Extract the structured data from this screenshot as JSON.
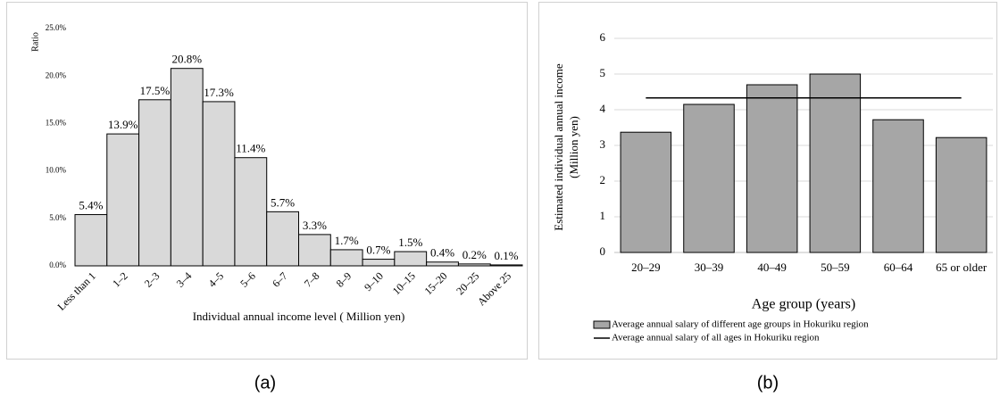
{
  "chart_data": [
    {
      "type": "bar",
      "label": "(a)",
      "ylabel": "Ratio",
      "xlabel": "Individual annual income level ( Million yen)",
      "categories": [
        "Less than 1",
        "1–2",
        "2–3",
        "3–4",
        "4–5",
        "5–6",
        "6–7",
        "7–8",
        "8–9",
        "9–10",
        "10–15",
        "15–20",
        "20–25",
        "Above 25"
      ],
      "values": [
        5.4,
        13.9,
        17.5,
        20.8,
        17.3,
        11.4,
        5.7,
        3.3,
        1.7,
        0.7,
        1.5,
        0.4,
        0.2,
        0.1
      ],
      "value_labels": [
        "5.4%",
        "13.9%",
        "17.5%",
        "20.8%",
        "17.3%",
        "11.4%",
        "5.7%",
        "3.3%",
        "1.7%",
        "0.7%",
        "1.5%",
        "0.4%",
        "0.2%",
        "0.1%"
      ],
      "color": "#d9d9d9",
      "ylim": [
        0,
        25
      ],
      "yticks": [
        {
          "value": 0,
          "label": "0.0%"
        },
        {
          "value": 5,
          "label": "5.0%"
        },
        {
          "value": 10,
          "label": "10.0%"
        },
        {
          "value": 15,
          "label": "15.0%"
        },
        {
          "value": 20,
          "label": "20.0%"
        },
        {
          "value": 25,
          "label": "25.0%"
        }
      ],
      "grid": false,
      "xtick_rotation": -45
    },
    {
      "type": "bar",
      "label": "(b)",
      "ylabel": [
        "Estimated individual annual income",
        "(Million yen)"
      ],
      "xlabel": "Age group (years)",
      "categories": [
        "20–29",
        "30–39",
        "40–49",
        "50–59",
        "60–64",
        "65 or older"
      ],
      "series": [
        {
          "name": "Average annual salary of different age groups in Hokuriku region",
          "type": "bar",
          "color": "#a6a6a6",
          "values": [
            3.37,
            4.15,
            4.7,
            5.0,
            3.72,
            3.22
          ]
        },
        {
          "name": "Average annual salary of all ages in Hokuriku region",
          "type": "line",
          "color": "#000000",
          "values": [
            4.33,
            4.33,
            4.33,
            4.33,
            4.33,
            4.33
          ]
        }
      ],
      "ylim": [
        0,
        6
      ],
      "yticks": [
        0,
        1,
        2,
        3,
        4,
        5,
        6
      ],
      "grid": true,
      "legend": "bottom"
    }
  ]
}
